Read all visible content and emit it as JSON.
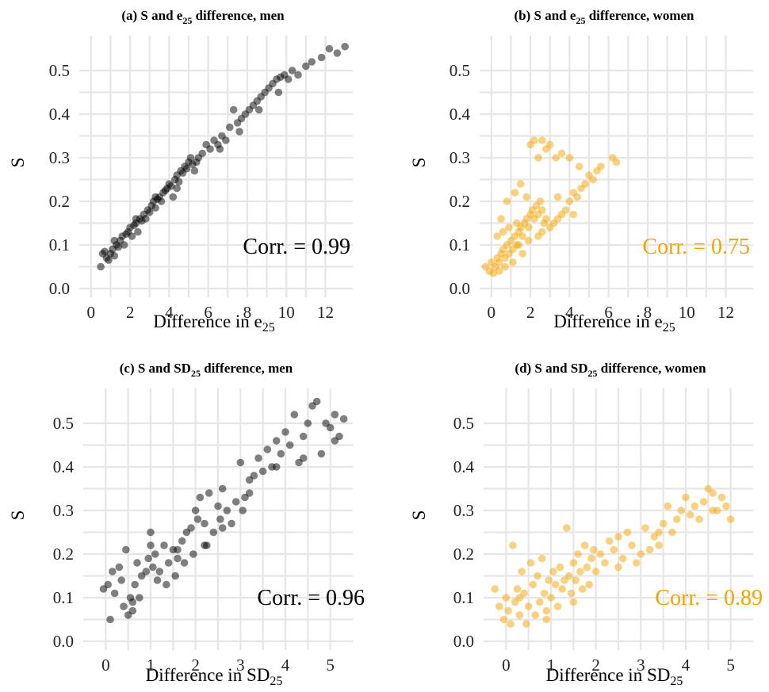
{
  "chart_data": [
    {
      "type": "scatter",
      "panel": "a",
      "title": "(a) S and e25 difference, men",
      "title_parts": {
        "lead": "(a) S and  e",
        "sub": "25",
        "tail": "  difference, men"
      },
      "xlabel_parts": {
        "lead": "Difference in  e",
        "sub": "25"
      },
      "ylabel": "S",
      "xlim": [
        -0.6,
        13.4
      ],
      "ylim": [
        -0.02,
        0.58
      ],
      "x_ticks": [
        0,
        2,
        4,
        6,
        8,
        10,
        12
      ],
      "y_ticks": [
        0.0,
        0.1,
        0.2,
        0.3,
        0.4,
        0.5
      ],
      "annotation": "Corr. = 0.99",
      "color": "#000000",
      "point_opacity": 0.5,
      "points": [
        [
          0.5,
          0.05
        ],
        [
          0.6,
          0.08
        ],
        [
          0.7,
          0.085
        ],
        [
          0.8,
          0.07
        ],
        [
          0.9,
          0.065
        ],
        [
          1.0,
          0.08
        ],
        [
          1.1,
          0.09
        ],
        [
          1.2,
          0.075
        ],
        [
          1.3,
          0.1
        ],
        [
          1.4,
          0.095
        ],
        [
          1.5,
          0.11
        ],
        [
          1.6,
          0.12
        ],
        [
          1.7,
          0.1
        ],
        [
          1.8,
          0.125
        ],
        [
          1.9,
          0.13
        ],
        [
          2.0,
          0.14
        ],
        [
          2.1,
          0.12
        ],
        [
          2.2,
          0.145
        ],
        [
          2.3,
          0.15
        ],
        [
          2.4,
          0.13
        ],
        [
          2.5,
          0.16
        ],
        [
          2.6,
          0.155
        ],
        [
          2.7,
          0.17
        ],
        [
          2.8,
          0.16
        ],
        [
          2.9,
          0.18
        ],
        [
          3.0,
          0.175
        ],
        [
          3.1,
          0.19
        ],
        [
          3.2,
          0.2
        ],
        [
          3.3,
          0.185
        ],
        [
          3.4,
          0.205
        ],
        [
          3.5,
          0.21
        ],
        [
          3.6,
          0.2
        ],
        [
          3.7,
          0.22
        ],
        [
          3.8,
          0.225
        ],
        [
          3.9,
          0.23
        ],
        [
          4.0,
          0.24
        ],
        [
          4.1,
          0.235
        ],
        [
          4.2,
          0.21
        ],
        [
          4.3,
          0.25
        ],
        [
          4.4,
          0.26
        ],
        [
          4.5,
          0.245
        ],
        [
          4.6,
          0.27
        ],
        [
          4.7,
          0.265
        ],
        [
          4.8,
          0.28
        ],
        [
          4.9,
          0.275
        ],
        [
          5.0,
          0.29
        ],
        [
          5.1,
          0.3
        ],
        [
          5.2,
          0.285
        ],
        [
          5.3,
          0.27
        ],
        [
          5.5,
          0.3
        ],
        [
          5.7,
          0.31
        ],
        [
          5.9,
          0.33
        ],
        [
          6.1,
          0.32
        ],
        [
          6.3,
          0.34
        ],
        [
          6.5,
          0.33
        ],
        [
          6.7,
          0.35
        ],
        [
          6.9,
          0.34
        ],
        [
          7.1,
          0.37
        ],
        [
          7.3,
          0.41
        ],
        [
          7.5,
          0.38
        ],
        [
          7.7,
          0.39
        ],
        [
          7.9,
          0.4
        ],
        [
          8.1,
          0.41
        ],
        [
          8.3,
          0.42
        ],
        [
          8.5,
          0.43
        ],
        [
          8.7,
          0.44
        ],
        [
          8.9,
          0.45
        ],
        [
          9.1,
          0.46
        ],
        [
          9.3,
          0.47
        ],
        [
          9.5,
          0.48
        ],
        [
          9.7,
          0.485
        ],
        [
          9.9,
          0.49
        ],
        [
          10.1,
          0.48
        ],
        [
          10.3,
          0.5
        ],
        [
          10.6,
          0.49
        ],
        [
          11.0,
          0.51
        ],
        [
          11.3,
          0.52
        ],
        [
          11.8,
          0.53
        ],
        [
          12.2,
          0.55
        ],
        [
          12.6,
          0.54
        ],
        [
          13.0,
          0.555
        ],
        [
          1.2,
          0.11
        ],
        [
          2.3,
          0.16
        ],
        [
          3.3,
          0.21
        ],
        [
          4.4,
          0.23
        ],
        [
          5.4,
          0.29
        ],
        [
          6.6,
          0.32
        ],
        [
          7.6,
          0.36
        ],
        [
          8.6,
          0.41
        ],
        [
          9.6,
          0.45
        ]
      ]
    },
    {
      "type": "scatter",
      "panel": "b",
      "title": "(b) S and e25 difference, women",
      "title_parts": {
        "lead": "(b) S and  e",
        "sub": "25",
        "tail": "  difference, women"
      },
      "xlabel_parts": {
        "lead": "Difference in  e",
        "sub": "25"
      },
      "ylabel": "S",
      "xlim": [
        -0.6,
        13.4
      ],
      "ylim": [
        -0.02,
        0.58
      ],
      "x_ticks": [
        0,
        2,
        4,
        6,
        8,
        10,
        12
      ],
      "y_ticks": [
        0.0,
        0.1,
        0.2,
        0.3,
        0.4,
        0.5
      ],
      "annotation": "Corr. = 0.75",
      "color": "#F5A300",
      "point_opacity": 0.5,
      "points": [
        [
          -0.3,
          0.05
        ],
        [
          -0.1,
          0.04
        ],
        [
          0.0,
          0.06
        ],
        [
          0.1,
          0.035
        ],
        [
          0.2,
          0.05
        ],
        [
          0.3,
          0.07
        ],
        [
          0.4,
          0.06
        ],
        [
          0.5,
          0.08
        ],
        [
          0.6,
          0.09
        ],
        [
          0.7,
          0.07
        ],
        [
          0.8,
          0.1
        ],
        [
          0.9,
          0.08
        ],
        [
          1.0,
          0.11
        ],
        [
          1.1,
          0.09
        ],
        [
          1.2,
          0.12
        ],
        [
          1.3,
          0.1
        ],
        [
          1.4,
          0.13
        ],
        [
          1.5,
          0.14
        ],
        [
          1.6,
          0.12
        ],
        [
          1.7,
          0.15
        ],
        [
          1.8,
          0.16
        ],
        [
          1.9,
          0.14
        ],
        [
          2.0,
          0.17
        ],
        [
          2.1,
          0.18
        ],
        [
          2.2,
          0.16
        ],
        [
          2.3,
          0.19
        ],
        [
          2.4,
          0.17
        ],
        [
          2.5,
          0.2
        ],
        [
          2.6,
          0.18
        ],
        [
          2.7,
          0.15
        ],
        [
          2.8,
          0.16
        ],
        [
          3.0,
          0.14
        ],
        [
          3.2,
          0.15
        ],
        [
          3.4,
          0.16
        ],
        [
          3.6,
          0.17
        ],
        [
          3.8,
          0.18
        ],
        [
          4.0,
          0.2
        ],
        [
          4.2,
          0.22
        ],
        [
          4.4,
          0.21
        ],
        [
          4.6,
          0.23
        ],
        [
          4.8,
          0.24
        ],
        [
          5.0,
          0.26
        ],
        [
          5.2,
          0.25
        ],
        [
          5.4,
          0.27
        ],
        [
          5.6,
          0.28
        ],
        [
          6.2,
          0.3
        ],
        [
          6.4,
          0.29
        ],
        [
          2.0,
          0.33
        ],
        [
          2.2,
          0.34
        ],
        [
          2.4,
          0.3
        ],
        [
          2.6,
          0.34
        ],
        [
          2.8,
          0.32
        ],
        [
          3.0,
          0.33
        ],
        [
          3.3,
          0.3
        ],
        [
          3.6,
          0.31
        ],
        [
          4.0,
          0.3
        ],
        [
          4.5,
          0.28
        ],
        [
          0.5,
          0.16
        ],
        [
          0.8,
          0.2
        ],
        [
          1.2,
          0.22
        ],
        [
          1.5,
          0.24
        ],
        [
          1.8,
          0.21
        ],
        [
          0.3,
          0.12
        ],
        [
          0.6,
          0.13
        ],
        [
          0.9,
          0.14
        ],
        [
          1.4,
          0.1
        ],
        [
          1.1,
          0.06
        ],
        [
          0.4,
          0.04
        ],
        [
          0.7,
          0.05
        ],
        [
          1.6,
          0.08
        ],
        [
          1.3,
          0.15
        ],
        [
          2.6,
          0.13
        ],
        [
          3.4,
          0.21
        ],
        [
          4.2,
          0.17
        ],
        [
          1.9,
          0.11
        ],
        [
          2.4,
          0.12
        ]
      ]
    },
    {
      "type": "scatter",
      "panel": "c",
      "title": "(c) S and SD25 difference, men",
      "title_parts": {
        "lead": "(c) S and  SD",
        "sub": "25",
        "tail": "  difference, men"
      },
      "xlabel_parts": {
        "lead": "Difference in  SD",
        "sub": "25"
      },
      "ylabel": "S",
      "xlim": [
        -0.5,
        5.5
      ],
      "ylim": [
        -0.02,
        0.58
      ],
      "x_ticks": [
        0,
        1,
        2,
        3,
        4,
        5
      ],
      "y_ticks": [
        0.0,
        0.1,
        0.2,
        0.3,
        0.4,
        0.5
      ],
      "annotation": "Corr. = 0.96",
      "color": "#000000",
      "point_opacity": 0.5,
      "points": [
        [
          -0.05,
          0.12
        ],
        [
          0.05,
          0.13
        ],
        [
          0.1,
          0.05
        ],
        [
          0.15,
          0.16
        ],
        [
          0.2,
          0.11
        ],
        [
          0.3,
          0.17
        ],
        [
          0.35,
          0.14
        ],
        [
          0.4,
          0.08
        ],
        [
          0.45,
          0.21
        ],
        [
          0.5,
          0.06
        ],
        [
          0.55,
          0.1
        ],
        [
          0.6,
          0.09
        ],
        [
          0.65,
          0.13
        ],
        [
          0.7,
          0.18
        ],
        [
          0.75,
          0.1
        ],
        [
          0.8,
          0.15
        ],
        [
          0.9,
          0.16
        ],
        [
          0.95,
          0.19
        ],
        [
          1.0,
          0.25
        ],
        [
          1.05,
          0.17
        ],
        [
          1.1,
          0.2
        ],
        [
          1.15,
          0.14
        ],
        [
          1.2,
          0.16
        ],
        [
          1.3,
          0.22
        ],
        [
          1.35,
          0.13
        ],
        [
          1.4,
          0.18
        ],
        [
          1.5,
          0.21
        ],
        [
          1.55,
          0.15
        ],
        [
          1.6,
          0.19
        ],
        [
          1.7,
          0.23
        ],
        [
          1.75,
          0.18
        ],
        [
          1.8,
          0.25
        ],
        [
          1.9,
          0.26
        ],
        [
          1.95,
          0.2
        ],
        [
          2.0,
          0.3
        ],
        [
          2.05,
          0.28
        ],
        [
          2.1,
          0.33
        ],
        [
          2.2,
          0.27
        ],
        [
          2.25,
          0.22
        ],
        [
          2.3,
          0.34
        ],
        [
          2.4,
          0.25
        ],
        [
          2.5,
          0.31
        ],
        [
          2.55,
          0.28
        ],
        [
          2.6,
          0.35
        ],
        [
          2.7,
          0.3
        ],
        [
          2.8,
          0.27
        ],
        [
          2.9,
          0.32
        ],
        [
          3.0,
          0.41
        ],
        [
          3.05,
          0.3
        ],
        [
          3.1,
          0.33
        ],
        [
          3.2,
          0.37
        ],
        [
          3.3,
          0.38
        ],
        [
          3.4,
          0.42
        ],
        [
          3.5,
          0.39
        ],
        [
          3.6,
          0.44
        ],
        [
          3.7,
          0.4
        ],
        [
          3.8,
          0.46
        ],
        [
          3.9,
          0.43
        ],
        [
          4.0,
          0.48
        ],
        [
          4.1,
          0.45
        ],
        [
          4.2,
          0.52
        ],
        [
          4.3,
          0.41
        ],
        [
          4.4,
          0.47
        ],
        [
          4.5,
          0.5
        ],
        [
          4.6,
          0.54
        ],
        [
          4.7,
          0.55
        ],
        [
          4.8,
          0.43
        ],
        [
          4.9,
          0.5
        ],
        [
          5.0,
          0.49
        ],
        [
          5.1,
          0.52
        ],
        [
          5.2,
          0.47
        ],
        [
          5.3,
          0.51
        ],
        [
          0.6,
          0.07
        ],
        [
          1.0,
          0.22
        ],
        [
          1.6,
          0.21
        ],
        [
          2.2,
          0.22
        ],
        [
          2.6,
          0.26
        ],
        [
          3.2,
          0.34
        ],
        [
          3.8,
          0.4
        ],
        [
          4.4,
          0.42
        ],
        [
          5.1,
          0.46
        ]
      ]
    },
    {
      "type": "scatter",
      "panel": "d",
      "title": "(d) S and SD25 difference, women",
      "title_parts": {
        "lead": "(d) S and  SD",
        "sub": "25",
        "tail": "  difference, women"
      },
      "xlabel_parts": {
        "lead": "Difference in  SD",
        "sub": "25"
      },
      "ylabel": "S",
      "xlim": [
        -0.5,
        5.5
      ],
      "ylim": [
        -0.02,
        0.58
      ],
      "x_ticks": [
        0,
        1,
        2,
        3,
        4,
        5
      ],
      "y_ticks": [
        0.0,
        0.1,
        0.2,
        0.3,
        0.4,
        0.5
      ],
      "annotation": "Corr. = 0.89",
      "color": "#F5A300",
      "point_opacity": 0.5,
      "points": [
        [
          -0.25,
          0.12
        ],
        [
          -0.15,
          0.08
        ],
        [
          -0.05,
          0.05
        ],
        [
          0.0,
          0.1
        ],
        [
          0.05,
          0.07
        ],
        [
          0.1,
          0.04
        ],
        [
          0.15,
          0.22
        ],
        [
          0.2,
          0.09
        ],
        [
          0.25,
          0.12
        ],
        [
          0.3,
          0.06
        ],
        [
          0.35,
          0.16
        ],
        [
          0.4,
          0.11
        ],
        [
          0.45,
          0.04
        ],
        [
          0.5,
          0.08
        ],
        [
          0.55,
          0.18
        ],
        [
          0.6,
          0.13
        ],
        [
          0.65,
          0.06
        ],
        [
          0.7,
          0.15
        ],
        [
          0.75,
          0.09
        ],
        [
          0.8,
          0.19
        ],
        [
          0.85,
          0.11
        ],
        [
          0.9,
          0.07
        ],
        [
          0.95,
          0.14
        ],
        [
          1.0,
          0.1
        ],
        [
          1.05,
          0.16
        ],
        [
          1.1,
          0.13
        ],
        [
          1.15,
          0.08
        ],
        [
          1.2,
          0.17
        ],
        [
          1.25,
          0.12
        ],
        [
          1.3,
          0.14
        ],
        [
          1.35,
          0.26
        ],
        [
          1.4,
          0.15
        ],
        [
          1.45,
          0.11
        ],
        [
          1.5,
          0.18
        ],
        [
          1.55,
          0.14
        ],
        [
          1.6,
          0.2
        ],
        [
          1.65,
          0.16
        ],
        [
          1.7,
          0.12
        ],
        [
          1.75,
          0.22
        ],
        [
          1.8,
          0.17
        ],
        [
          1.85,
          0.13
        ],
        [
          1.9,
          0.19
        ],
        [
          1.95,
          0.21
        ],
        [
          2.0,
          0.16
        ],
        [
          2.1,
          0.2
        ],
        [
          2.2,
          0.18
        ],
        [
          2.3,
          0.23
        ],
        [
          2.4,
          0.21
        ],
        [
          2.5,
          0.24
        ],
        [
          2.6,
          0.19
        ],
        [
          2.7,
          0.25
        ],
        [
          2.8,
          0.22
        ],
        [
          2.9,
          0.18
        ],
        [
          3.0,
          0.2
        ],
        [
          3.1,
          0.26
        ],
        [
          3.2,
          0.21
        ],
        [
          3.3,
          0.24
        ],
        [
          3.4,
          0.22
        ],
        [
          3.5,
          0.27
        ],
        [
          3.6,
          0.31
        ],
        [
          3.7,
          0.25
        ],
        [
          3.8,
          0.28
        ],
        [
          3.9,
          0.3
        ],
        [
          4.0,
          0.33
        ],
        [
          4.1,
          0.29
        ],
        [
          4.2,
          0.31
        ],
        [
          4.3,
          0.28
        ],
        [
          4.4,
          0.32
        ],
        [
          4.5,
          0.35
        ],
        [
          4.6,
          0.34
        ],
        [
          4.7,
          0.3
        ],
        [
          4.8,
          0.33
        ],
        [
          4.9,
          0.31
        ],
        [
          5.0,
          0.28
        ],
        [
          0.3,
          0.1
        ],
        [
          0.9,
          0.05
        ],
        [
          1.5,
          0.09
        ],
        [
          2.5,
          0.17
        ],
        [
          3.4,
          0.25
        ],
        [
          4.6,
          0.3
        ]
      ]
    }
  ]
}
